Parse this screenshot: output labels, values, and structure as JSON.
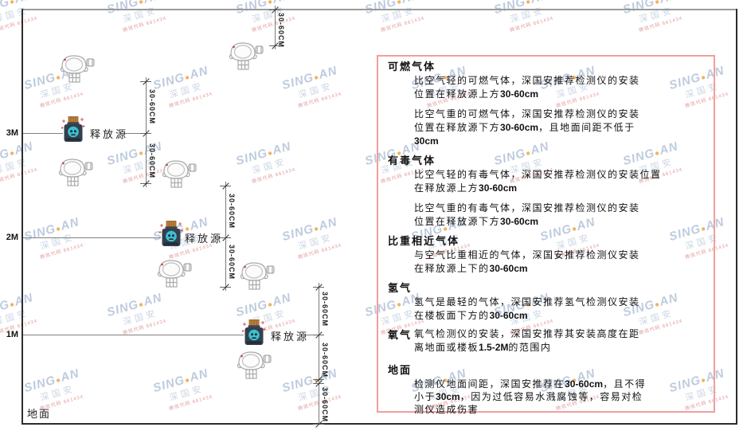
{
  "watermark": {
    "brand_prefix": "SING",
    "brand_dot": "●",
    "brand_suffix": "AN",
    "company": "深国安",
    "agent_code": "微信代码 661434"
  },
  "diagram": {
    "height_labels": [
      "3M",
      "2M",
      "1M"
    ],
    "dimension_label": "30-60CM",
    "release_source_label": "释放源",
    "floor_label": "地面"
  },
  "panel": {
    "sections": [
      {
        "heading": "可燃气体",
        "inline": false,
        "paragraphs": [
          [
            "比空气轻的可燃气体，深国安推荐检测仪的安装",
            "位置在释放源上方30-60cm"
          ],
          [
            "比空气重的可燃气体，深国安推荐检测仪的安装",
            "位置在释放源下方30-60cm，且地面间距不低于",
            "30cm"
          ]
        ]
      },
      {
        "heading": "有毒气体",
        "inline": false,
        "paragraphs": [
          [
            "比空气轻的有毒气体，深国安推荐检测仪的安装位置",
            "在释放源上方30-60cm"
          ],
          [
            "比空气重的有毒气体，深国安推荐检测仪的安装",
            "位置在释放源下方30-60cm"
          ]
        ]
      },
      {
        "heading": "比重相近气体",
        "inline": false,
        "paragraphs": [
          [
            "与空气比重相近的气体，深国安推荐检测仪安装",
            "在释放源上下的30-60cm"
          ]
        ]
      },
      {
        "heading": "氢气",
        "inline": false,
        "paragraphs": [
          [
            "氢气是最轻的气体，深国安推荐氢气检测仪安装",
            "在楼板面下方的30-60cm"
          ]
        ]
      },
      {
        "heading": "氧气",
        "inline": true,
        "paragraphs": [
          [
            "氧气检测仪的安装，深国安推荐其安装高度在距",
            "离地面或楼板1.5-2M的范围内"
          ]
        ]
      },
      {
        "heading": "地面",
        "inline": false,
        "paragraphs": [
          [
            "检测仪地面间距，深国安推荐在30-60cm，且不得",
            "小于30cm，因为过低容易水溅腐蚀等，容易对检",
            "测仪造成伤害"
          ]
        ]
      }
    ]
  },
  "colors": {
    "panel_border": "#f29e9e",
    "frame_dark": "#2d2d2d",
    "ceiling_gray": "#9b9b9b",
    "dimension_line": "#7a7a7a",
    "watermark_blue": "#b3c3d8",
    "watermark_red": "#dd8888",
    "brand_dot_orange": "#f0a545",
    "source_body": "#33404f",
    "source_cap": "#c2803a",
    "source_skull": "#3cc0d0",
    "spark_red": "#e05555",
    "detector_stroke": "#a9a9a9"
  }
}
